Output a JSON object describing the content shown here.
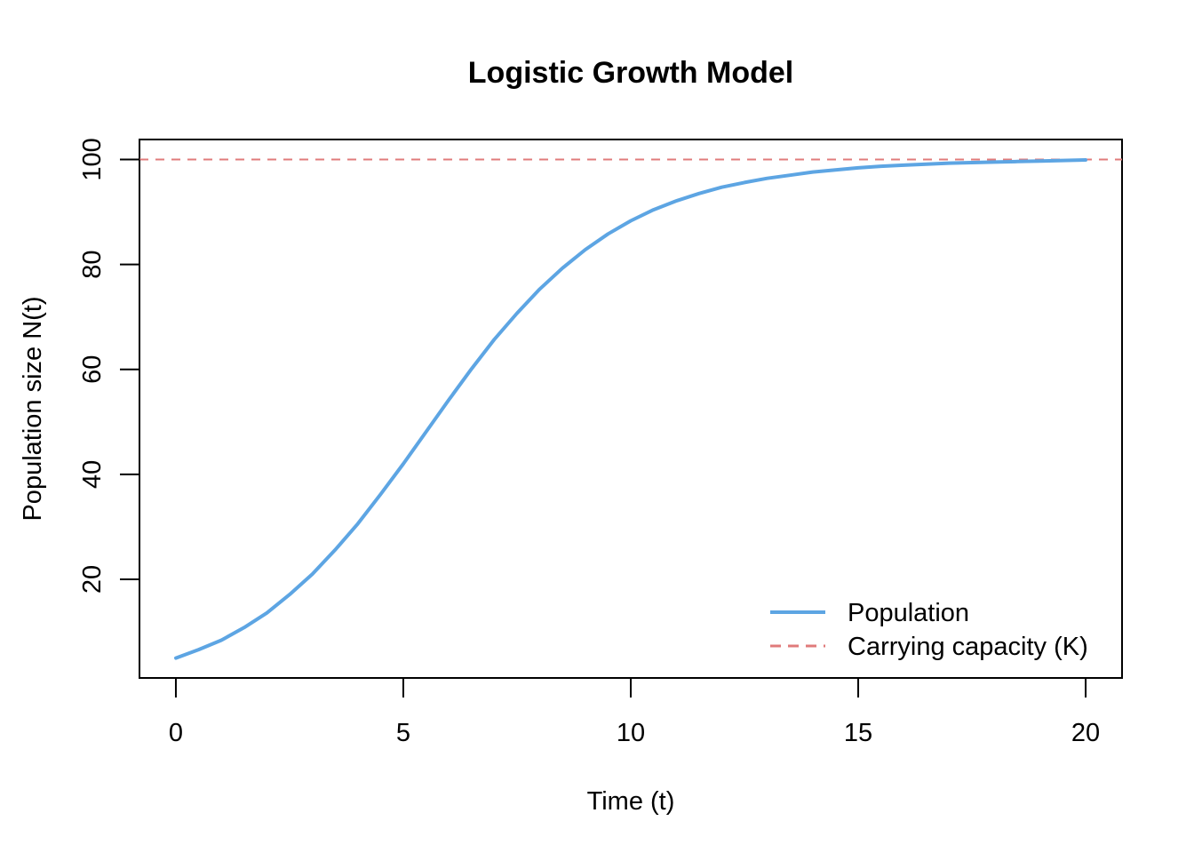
{
  "chart_data": {
    "type": "line",
    "title": "Logistic Growth Model",
    "xlabel": "Time (t)",
    "ylabel": "Population size N(t)",
    "xlim": [
      -0.8,
      20.8
    ],
    "ylim": [
      1.2,
      103.8
    ],
    "xticks": [
      0,
      5,
      10,
      15,
      20
    ],
    "yticks": [
      20,
      40,
      60,
      80,
      100
    ],
    "grid": false,
    "legend_position": "bottom-right",
    "series": [
      {
        "name": "Population",
        "color": "#5DA5E3",
        "line_style": "solid",
        "x": [
          0,
          0.5,
          1,
          1.5,
          2,
          2.5,
          3,
          3.5,
          4,
          4.5,
          5,
          5.5,
          6,
          6.5,
          7,
          7.5,
          8,
          8.5,
          9,
          9.5,
          10,
          10.5,
          11,
          11.5,
          12,
          12.5,
          13,
          13.5,
          14,
          14.5,
          15,
          15.5,
          16,
          16.5,
          17,
          17.5,
          18,
          18.5,
          19,
          19.5,
          20
        ],
        "values": [
          5,
          6.6,
          8.4,
          10.8,
          13.6,
          17.1,
          21.0,
          25.6,
          30.6,
          36.2,
          42.0,
          48.1,
          54.2,
          60.1,
          65.7,
          70.7,
          75.3,
          79.3,
          82.8,
          85.8,
          88.3,
          90.4,
          92.1,
          93.5,
          94.7,
          95.6,
          96.4,
          97.0,
          97.6,
          98.0,
          98.4,
          98.7,
          98.9,
          99.1,
          99.3,
          99.4,
          99.5,
          99.6,
          99.7,
          99.8,
          99.9
        ]
      },
      {
        "name": "Carrying capacity (K)",
        "color": "#E07B7B",
        "line_style": "dashed",
        "hline": 100
      }
    ]
  }
}
